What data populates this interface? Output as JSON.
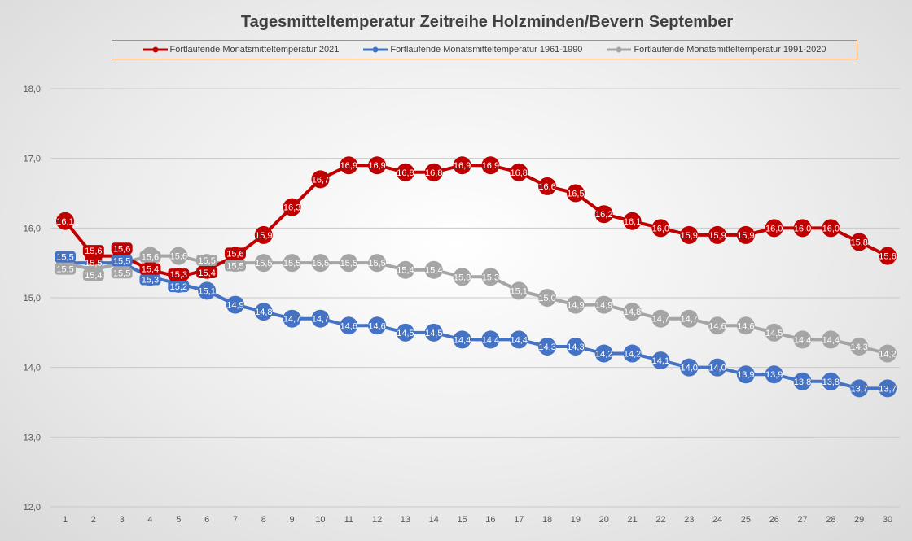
{
  "chart_data": {
    "type": "line",
    "title": "Tagesmitteltemperatur Zeitreihe Holzminden/Bevern September",
    "xlabel": "",
    "ylabel": "",
    "categories": [
      "1",
      "2",
      "3",
      "4",
      "5",
      "6",
      "7",
      "8",
      "9",
      "10",
      "11",
      "12",
      "13",
      "14",
      "15",
      "16",
      "17",
      "18",
      "19",
      "20",
      "21",
      "22",
      "23",
      "24",
      "25",
      "26",
      "27",
      "28",
      "29",
      "30"
    ],
    "ylim": [
      12,
      18
    ],
    "yticks": [
      "12,0",
      "13,0",
      "14,0",
      "15,0",
      "16,0",
      "17,0",
      "18,0"
    ],
    "grid": true,
    "legend_position": "top",
    "series": [
      {
        "name": "Fortlaufende Monatsmitteltemperatur 1961-1990",
        "color": "#4472c4",
        "values": [
          15.5,
          15.5,
          15.5,
          15.3,
          15.2,
          15.1,
          14.9,
          14.8,
          14.7,
          14.7,
          14.6,
          14.6,
          14.5,
          14.5,
          14.4,
          14.4,
          14.4,
          14.3,
          14.3,
          14.2,
          14.2,
          14.1,
          14.0,
          14.0,
          13.9,
          13.9,
          13.8,
          13.8,
          13.7,
          13.7
        ]
      },
      {
        "name": "Fortlaufende Monatsmitteltemperatur 1991-2020",
        "color": "#a5a5a5",
        "values": [
          15.5,
          15.4,
          15.5,
          15.6,
          15.6,
          15.5,
          15.5,
          15.5,
          15.5,
          15.5,
          15.5,
          15.5,
          15.4,
          15.4,
          15.3,
          15.3,
          15.1,
          15.0,
          14.9,
          14.9,
          14.8,
          14.7,
          14.7,
          14.6,
          14.6,
          14.5,
          14.4,
          14.4,
          14.3,
          14.2
        ]
      },
      {
        "name": "Fortlaufende Monatsmitteltemperatur 2021",
        "color": "#c00000",
        "values": [
          16.1,
          15.6,
          15.6,
          15.4,
          15.3,
          15.4,
          15.6,
          15.9,
          16.3,
          16.7,
          16.9,
          16.9,
          16.8,
          16.8,
          16.9,
          16.9,
          16.8,
          16.6,
          16.5,
          16.2,
          16.1,
          16.0,
          15.9,
          15.9,
          15.9,
          16.0,
          16.0,
          16.0,
          15.8,
          15.6
        ]
      }
    ],
    "legend_order": [
      2,
      0,
      1
    ]
  }
}
